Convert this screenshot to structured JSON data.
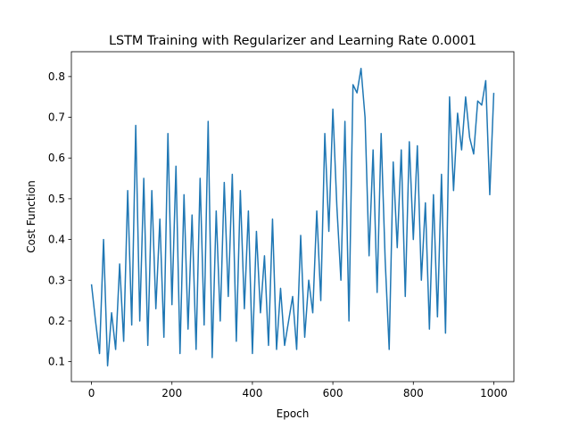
{
  "chart_data": {
    "type": "line",
    "title": "LSTM Training with Regularizer and Learning Rate 0.0001",
    "x_label": "Epoch",
    "y_label": "Cost Function",
    "x": [
      0,
      10,
      20,
      30,
      40,
      50,
      60,
      70,
      80,
      90,
      100,
      110,
      120,
      130,
      140,
      150,
      160,
      170,
      180,
      190,
      200,
      210,
      220,
      230,
      240,
      250,
      260,
      270,
      280,
      290,
      300,
      310,
      320,
      330,
      340,
      350,
      360,
      370,
      380,
      390,
      400,
      410,
      420,
      430,
      440,
      450,
      460,
      470,
      480,
      490,
      500,
      510,
      520,
      530,
      540,
      550,
      560,
      570,
      580,
      590,
      600,
      610,
      620,
      630,
      640,
      650,
      660,
      670,
      680,
      690,
      700,
      710,
      720,
      730,
      740,
      750,
      760,
      770,
      780,
      790,
      800,
      810,
      820,
      830,
      840,
      850,
      860,
      870,
      880,
      890,
      900,
      910,
      920,
      930,
      940,
      950,
      960,
      970,
      980,
      990,
      1000
    ],
    "series": [
      {
        "color": "#1f77b4",
        "values": [
          0.29,
          0.2,
          0.12,
          0.4,
          0.09,
          0.22,
          0.13,
          0.34,
          0.15,
          0.52,
          0.19,
          0.68,
          0.2,
          0.55,
          0.14,
          0.52,
          0.23,
          0.45,
          0.16,
          0.66,
          0.24,
          0.58,
          0.12,
          0.51,
          0.18,
          0.46,
          0.13,
          0.55,
          0.19,
          0.69,
          0.11,
          0.47,
          0.2,
          0.54,
          0.26,
          0.56,
          0.15,
          0.52,
          0.23,
          0.47,
          0.12,
          0.42,
          0.22,
          0.36,
          0.14,
          0.45,
          0.13,
          0.28,
          0.14,
          0.2,
          0.26,
          0.13,
          0.41,
          0.16,
          0.3,
          0.22,
          0.47,
          0.25,
          0.66,
          0.42,
          0.72,
          0.48,
          0.3,
          0.69,
          0.2,
          0.78,
          0.76,
          0.82,
          0.7,
          0.36,
          0.62,
          0.27,
          0.66,
          0.35,
          0.13,
          0.59,
          0.38,
          0.62,
          0.26,
          0.64,
          0.4,
          0.63,
          0.3,
          0.49,
          0.18,
          0.51,
          0.21,
          0.56,
          0.17,
          0.75,
          0.52,
          0.71,
          0.62,
          0.75,
          0.65,
          0.61,
          0.74,
          0.73,
          0.79,
          0.51,
          0.76
        ]
      }
    ],
    "xlim": [
      -50,
      1050
    ],
    "ylim": [
      0.051,
      0.861
    ],
    "xticks": [
      0,
      200,
      400,
      600,
      800,
      1000
    ],
    "yticks": [
      0.1,
      0.2,
      0.3,
      0.4,
      0.5,
      0.6,
      0.7,
      0.8
    ]
  }
}
